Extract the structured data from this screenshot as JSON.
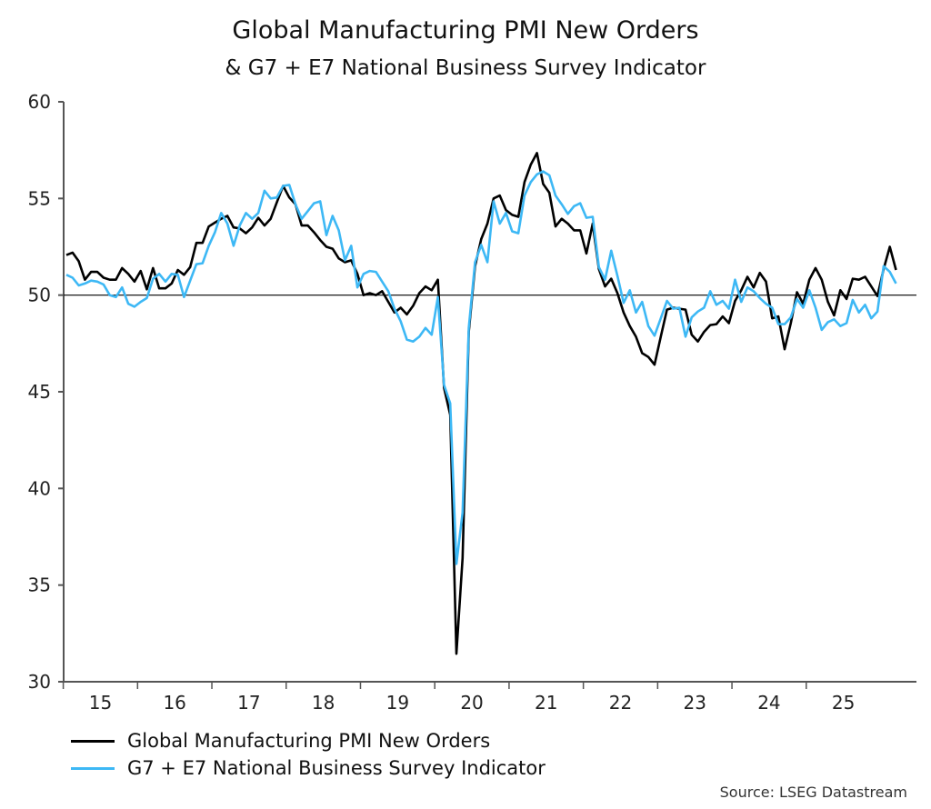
{
  "chart_data": {
    "type": "line",
    "title": "Global Manufacturing PMI New Orders",
    "subtitle": "& G7 + E7 National Business Survey Indicator",
    "source": "Source: LSEG Datastream",
    "ylim": [
      30,
      60
    ],
    "yticks": [
      30,
      35,
      40,
      45,
      50,
      55,
      60
    ],
    "reference_line": 50,
    "xtick_labels": [
      "15",
      "16",
      "17",
      "18",
      "19",
      "20",
      "21",
      "22",
      "23",
      "24",
      "25"
    ],
    "grid": false,
    "legend_position": "bottom-left",
    "x": [
      "2015-01",
      "2015-02",
      "2015-03",
      "2015-04",
      "2015-05",
      "2015-06",
      "2015-07",
      "2015-08",
      "2015-09",
      "2015-10",
      "2015-11",
      "2015-12",
      "2016-01",
      "2016-02",
      "2016-03",
      "2016-04",
      "2016-05",
      "2016-06",
      "2016-07",
      "2016-08",
      "2016-09",
      "2016-10",
      "2016-11",
      "2016-12",
      "2017-01",
      "2017-02",
      "2017-03",
      "2017-04",
      "2017-05",
      "2017-06",
      "2017-07",
      "2017-08",
      "2017-09",
      "2017-10",
      "2017-11",
      "2017-12",
      "2018-01",
      "2018-02",
      "2018-03",
      "2018-04",
      "2018-05",
      "2018-06",
      "2018-07",
      "2018-08",
      "2018-09",
      "2018-10",
      "2018-11",
      "2018-12",
      "2019-01",
      "2019-02",
      "2019-03",
      "2019-04",
      "2019-05",
      "2019-06",
      "2019-07",
      "2019-08",
      "2019-09",
      "2019-10",
      "2019-11",
      "2019-12",
      "2020-01",
      "2020-02",
      "2020-03",
      "2020-04",
      "2020-05",
      "2020-06",
      "2020-07",
      "2020-08",
      "2020-09",
      "2020-10",
      "2020-11",
      "2020-12",
      "2021-01",
      "2021-02",
      "2021-03",
      "2021-04",
      "2021-05",
      "2021-06",
      "2021-07",
      "2021-08",
      "2021-09",
      "2021-10",
      "2021-11",
      "2021-12",
      "2022-01",
      "2022-02",
      "2022-03",
      "2022-04",
      "2022-05",
      "2022-06",
      "2022-07",
      "2022-08",
      "2022-09",
      "2022-10",
      "2022-11",
      "2022-12",
      "2023-01",
      "2023-02",
      "2023-03",
      "2023-04",
      "2023-05",
      "2023-06",
      "2023-07",
      "2023-08",
      "2023-09",
      "2023-10",
      "2023-11",
      "2023-12",
      "2024-01",
      "2024-02",
      "2024-03",
      "2024-04",
      "2024-05",
      "2024-06",
      "2024-07",
      "2024-08",
      "2024-09",
      "2024-10",
      "2024-11",
      "2024-12",
      "2025-01",
      "2025-02",
      "2025-03",
      "2025-04",
      "2025-05",
      "2025-06",
      "2025-07",
      "2025-08",
      "2025-09",
      "2025-10",
      "2025-11",
      "2025-12",
      "2026-01",
      "2026-02",
      "2026-03"
    ],
    "series": [
      {
        "name": "Global Manufacturing PMI New Orders",
        "color": "#000000",
        "values": [
          52.07,
          52.2,
          51.75,
          50.8,
          51.2,
          51.2,
          50.9,
          50.8,
          50.8,
          51.4,
          51.1,
          50.7,
          51.25,
          50.3,
          51.4,
          50.35,
          50.35,
          50.6,
          51.3,
          51.05,
          51.45,
          52.7,
          52.7,
          53.55,
          53.75,
          53.95,
          54.1,
          53.5,
          53.45,
          53.2,
          53.5,
          54.0,
          53.6,
          53.95,
          54.8,
          55.65,
          55.05,
          54.7,
          53.6,
          53.6,
          53.25,
          52.85,
          52.5,
          52.4,
          51.9,
          51.7,
          51.8,
          51.1,
          50.0,
          50.1,
          50.0,
          50.2,
          49.65,
          49.1,
          49.35,
          49.0,
          49.45,
          50.1,
          50.45,
          50.25,
          50.8,
          45.2,
          43.8,
          31.45,
          36.4,
          48.1,
          51.5,
          52.9,
          53.7,
          55.0,
          55.15,
          54.4,
          54.15,
          54.05,
          55.85,
          56.75,
          57.35,
          55.75,
          55.3,
          53.55,
          53.95,
          53.7,
          53.35,
          53.35,
          52.15,
          53.7,
          51.35,
          50.45,
          50.85,
          50.1,
          49.1,
          48.4,
          47.85,
          47.0,
          46.8,
          46.4,
          47.85,
          49.25,
          49.35,
          49.3,
          49.25,
          47.95,
          47.6,
          48.1,
          48.45,
          48.5,
          48.9,
          48.55,
          49.7,
          50.25,
          50.95,
          50.4,
          51.15,
          50.7,
          48.8,
          48.9,
          47.2,
          48.55,
          50.15,
          49.55,
          50.8,
          51.4,
          50.8,
          49.65,
          48.95,
          50.25,
          49.8,
          50.85,
          50.8,
          50.95,
          50.45,
          49.95,
          51.35,
          52.5,
          51.3
        ]
      },
      {
        "name": "G7 + E7 National Business Survey Indicator",
        "color": "#3db8f5",
        "values": [
          51.05,
          50.9,
          50.5,
          50.6,
          50.75,
          50.7,
          50.55,
          50.0,
          49.9,
          50.4,
          49.55,
          49.4,
          49.65,
          49.85,
          50.85,
          51.1,
          50.7,
          51.1,
          51.05,
          49.9,
          50.75,
          51.6,
          51.65,
          52.55,
          53.25,
          54.25,
          53.7,
          52.55,
          53.6,
          54.25,
          53.95,
          54.25,
          55.4,
          55.0,
          55.05,
          55.65,
          55.7,
          54.7,
          53.95,
          54.35,
          54.75,
          54.85,
          53.1,
          54.1,
          53.35,
          51.8,
          52.55,
          50.4,
          51.1,
          51.25,
          51.2,
          50.7,
          50.2,
          49.3,
          48.65,
          47.7,
          47.6,
          47.85,
          48.3,
          47.95,
          49.9,
          45.35,
          44.4,
          36.1,
          38.75,
          48.3,
          51.7,
          52.6,
          51.7,
          54.85,
          53.7,
          54.25,
          53.3,
          53.2,
          55.15,
          55.85,
          56.25,
          56.4,
          56.2,
          55.15,
          54.7,
          54.2,
          54.6,
          54.75,
          54.0,
          54.05,
          51.45,
          50.8,
          52.3,
          51.0,
          49.6,
          50.25,
          49.1,
          49.65,
          48.4,
          47.9,
          48.8,
          49.7,
          49.3,
          49.35,
          47.85,
          48.85,
          49.15,
          49.35,
          50.2,
          49.5,
          49.7,
          49.3,
          50.8,
          49.65,
          50.4,
          50.2,
          49.85,
          49.55,
          49.35,
          48.5,
          48.5,
          48.85,
          49.8,
          49.35,
          50.25,
          49.35,
          48.2,
          48.6,
          48.75,
          48.4,
          48.55,
          49.75,
          49.1,
          49.5,
          48.8,
          49.15,
          51.5,
          51.2,
          50.6
        ]
      }
    ]
  }
}
